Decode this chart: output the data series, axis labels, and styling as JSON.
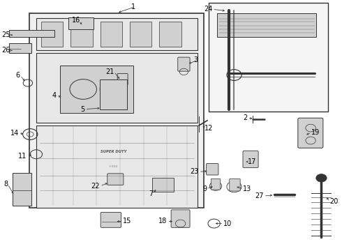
{
  "bg_color": "#ffffff",
  "line_color": "#333333",
  "label_color": "#000000",
  "label_fontsize": 7.0,
  "parts_fill": "#e8e8e8",
  "parts_fill2": "#d0d0d0",
  "main_fill": "#f0f0f0"
}
